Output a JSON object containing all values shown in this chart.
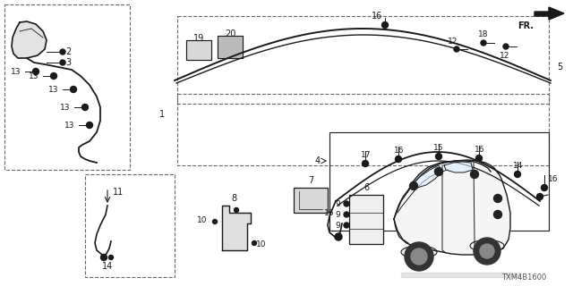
{
  "diagram_code": "TXM4B1600",
  "bg_color": "#ffffff",
  "line_color": "#1a1a1a",
  "gray_fill": "#d8d8d8",
  "dark_fill": "#444444"
}
